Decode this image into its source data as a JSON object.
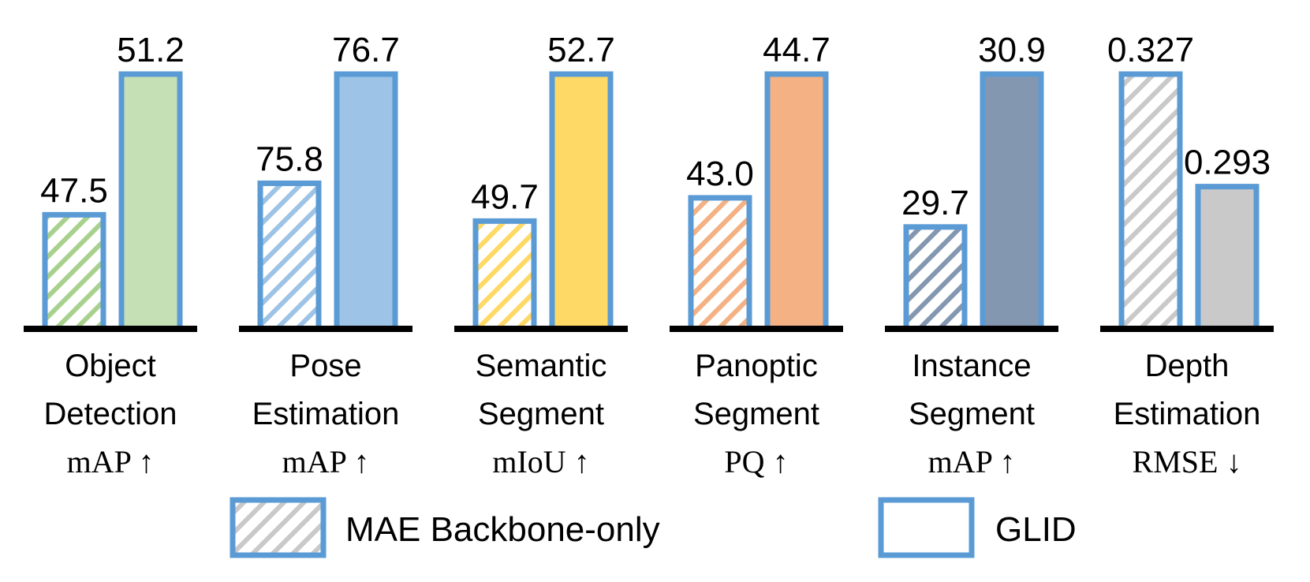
{
  "chart_data": {
    "type": "bar",
    "title": "",
    "xlabel": "",
    "ylabel": "",
    "grid": false,
    "legend_position": "bottom",
    "bar_border_color": "#5b9bd5",
    "categories": [
      {
        "line1": "Object",
        "line2": "Detection",
        "metric": "mAP ↑",
        "mae": 47.5,
        "mae_label": "47.5",
        "glid": 51.2,
        "glid_label": "51.2",
        "ylim": [
          44.5,
          51.2
        ],
        "color": "#c5e0b4",
        "hatch_color": "#a9d18e"
      },
      {
        "line1": "Pose",
        "line2": "Estimation",
        "metric": "mAP ↑",
        "mae": 75.8,
        "mae_label": "75.8",
        "glid": 76.7,
        "glid_label": "76.7",
        "ylim": [
          74.6,
          76.7
        ],
        "color": "#9dc3e6",
        "hatch_color": "#9dc3e6"
      },
      {
        "line1": "Semantic",
        "line2": "Segment",
        "metric": "mIoU ↑",
        "mae": 49.7,
        "mae_label": "49.7",
        "glid": 52.7,
        "glid_label": "52.7",
        "ylim": [
          47.5,
          52.7
        ],
        "color": "#ffd966",
        "hatch_color": "#ffd966"
      },
      {
        "line1": "Panoptic",
        "line2": "Segment",
        "metric": "PQ ↑",
        "mae": 43.0,
        "mae_label": "43.0",
        "glid": 44.7,
        "glid_label": "44.7",
        "ylim": [
          41.2,
          44.7
        ],
        "color": "#f4b183",
        "hatch_color": "#f4b183"
      },
      {
        "line1": "Instance",
        "line2": "Segment",
        "metric": "mAP ↑",
        "mae": 29.7,
        "mae_label": "29.7",
        "glid": 30.9,
        "glid_label": "30.9",
        "ylim": [
          28.9,
          30.9
        ],
        "color": "#8497b0",
        "hatch_color": "#8497b0"
      },
      {
        "line1": "Depth",
        "line2": "Estimation",
        "metric": "RMSE ↓",
        "mae": 0.327,
        "mae_label": "0.327",
        "glid": 0.293,
        "glid_label": "0.293",
        "ylim": [
          0.25,
          0.327
        ],
        "color": "#c9c9c9",
        "hatch_color": "#c9c9c9"
      }
    ],
    "legend": {
      "mae_label": "MAE Backbone-only",
      "glid_label": "GLID",
      "mae_hatch_color": "#c9c9c9"
    }
  }
}
